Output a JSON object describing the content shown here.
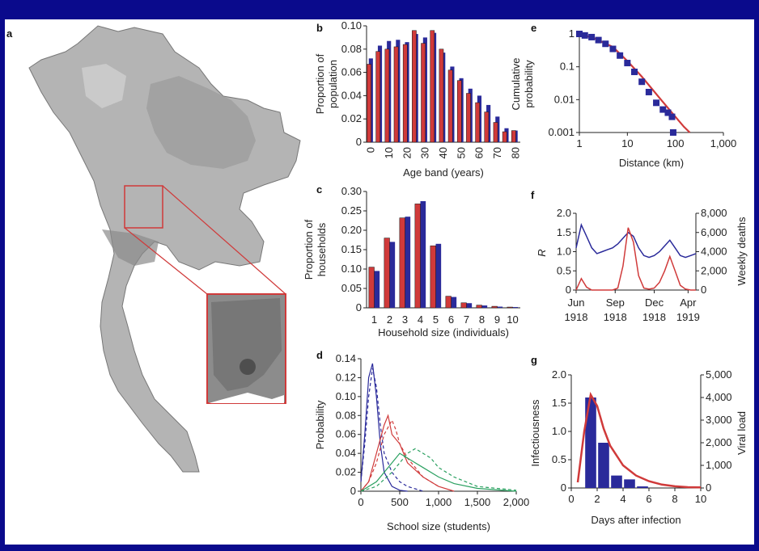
{
  "colors": {
    "background": "#0a0a8c",
    "red": "#d03a3a",
    "blue": "#2a2a9a",
    "green": "#2aa060",
    "map": "#9a9a9a"
  },
  "panels": {
    "a": {
      "letter": "a"
    },
    "b": {
      "letter": "b"
    },
    "c": {
      "letter": "c"
    },
    "d": {
      "letter": "d"
    },
    "e": {
      "letter": "e"
    },
    "f": {
      "letter": "f"
    },
    "g": {
      "letter": "g"
    }
  },
  "chart_data": [
    {
      "id": "b",
      "type": "bar",
      "ylabel": "Proportion of population",
      "xlabel": "Age band (years)",
      "ylim": [
        0,
        0.1
      ],
      "yticks": [
        "0",
        "0.02",
        "0.04",
        "0.06",
        "0.08",
        "0.10"
      ],
      "xticks": [
        "0",
        "10",
        "20",
        "30",
        "40",
        "50",
        "60",
        "70",
        "80"
      ],
      "categories": [
        "0",
        "5",
        "10",
        "15",
        "20",
        "25",
        "30",
        "35",
        "40",
        "45",
        "50",
        "55",
        "60",
        "65",
        "70",
        "75",
        "80"
      ],
      "series": [
        {
          "values": [
            0.072,
            0.083,
            0.087,
            0.088,
            0.086,
            0.093,
            0.09,
            0.094,
            0.077,
            0.065,
            0.055,
            0.046,
            0.04,
            0.032,
            0.022,
            0.012,
            0.01
          ]
        },
        {
          "values": [
            0.067,
            0.078,
            0.08,
            0.082,
            0.084,
            0.096,
            0.085,
            0.096,
            0.08,
            0.062,
            0.053,
            0.042,
            0.034,
            0.026,
            0.017,
            0.009,
            0.01
          ]
        }
      ]
    },
    {
      "id": "c",
      "type": "bar",
      "ylabel": "Proportion of households",
      "xlabel": "Household size (individuals)",
      "ylim": [
        0,
        0.3
      ],
      "yticks": [
        "0",
        "0.05",
        "0.10",
        "0.15",
        "0.20",
        "0.25",
        "0.30"
      ],
      "categories": [
        "1",
        "2",
        "3",
        "4",
        "5",
        "6",
        "7",
        "8",
        "9",
        "10"
      ],
      "series": [
        {
          "values": [
            0.095,
            0.17,
            0.235,
            0.275,
            0.165,
            0.028,
            0.012,
            0.006,
            0.003,
            0.002
          ]
        },
        {
          "values": [
            0.105,
            0.18,
            0.232,
            0.268,
            0.16,
            0.03,
            0.013,
            0.007,
            0.004,
            0.002
          ]
        }
      ]
    },
    {
      "id": "d",
      "type": "line",
      "ylabel": "Probability",
      "xlabel": "School size (students)",
      "xlim": [
        0,
        2000
      ],
      "ylim": [
        0,
        0.14
      ],
      "xticks": [
        "0",
        "500",
        "1,000",
        "1,500",
        "2,000"
      ],
      "yticks": [
        "0",
        "0.02",
        "0.04",
        "0.06",
        "0.08",
        "0.10",
        "0.12",
        "0.14"
      ],
      "series": [
        {
          "style": "blue-solid",
          "x": [
            0,
            50,
            100,
            150,
            200,
            250,
            300,
            400,
            500,
            600
          ],
          "y": [
            0.01,
            0.06,
            0.12,
            0.135,
            0.1,
            0.05,
            0.02,
            0.005,
            0.001,
            0
          ]
        },
        {
          "style": "blue-dashed",
          "x": [
            0,
            50,
            100,
            150,
            200,
            250,
            300,
            400,
            500,
            600,
            800
          ],
          "y": [
            0.01,
            0.05,
            0.1,
            0.13,
            0.11,
            0.07,
            0.04,
            0.02,
            0.01,
            0.005,
            0
          ]
        },
        {
          "style": "red-solid",
          "x": [
            0,
            100,
            200,
            300,
            350,
            400,
            500,
            600,
            800,
            1000,
            1200
          ],
          "y": [
            0,
            0.01,
            0.04,
            0.07,
            0.08,
            0.06,
            0.05,
            0.03,
            0.015,
            0.005,
            0
          ]
        },
        {
          "style": "red-dashed",
          "x": [
            0,
            100,
            200,
            300,
            400,
            450,
            500,
            600,
            800,
            1000
          ],
          "y": [
            0,
            0.01,
            0.03,
            0.06,
            0.075,
            0.065,
            0.05,
            0.035,
            0.015,
            0.005
          ]
        },
        {
          "style": "green-solid",
          "x": [
            0,
            200,
            400,
            500,
            600,
            700,
            800,
            1000,
            1200,
            1500,
            2000
          ],
          "y": [
            0,
            0.01,
            0.03,
            0.04,
            0.035,
            0.03,
            0.025,
            0.015,
            0.008,
            0.003,
            0
          ]
        },
        {
          "style": "green-dashed",
          "x": [
            0,
            200,
            400,
            600,
            700,
            800,
            900,
            1000,
            1200,
            1500,
            2000
          ],
          "y": [
            0,
            0.005,
            0.02,
            0.04,
            0.045,
            0.04,
            0.035,
            0.025,
            0.015,
            0.005,
            0.001
          ]
        }
      ]
    },
    {
      "id": "e",
      "type": "scatter",
      "ylabel": "Cumulative probability",
      "xlabel": "Distance (km)",
      "xlim": [
        1,
        1000
      ],
      "ylim": [
        0.001,
        1
      ],
      "xscale": "log",
      "yscale": "log",
      "xticks": [
        "1",
        "10",
        "100",
        "1,000"
      ],
      "yticks": [
        "0.001",
        "0.01",
        "0.1",
        "1"
      ],
      "points": {
        "x": [
          1,
          1.3,
          1.8,
          2.5,
          3.5,
          5,
          7,
          10,
          14,
          20,
          28,
          40,
          55,
          70,
          85,
          90
        ],
        "y": [
          1,
          0.9,
          0.8,
          0.65,
          0.5,
          0.35,
          0.22,
          0.13,
          0.07,
          0.035,
          0.017,
          0.008,
          0.005,
          0.004,
          0.003,
          0.001
        ]
      },
      "fit": {
        "x": [
          1,
          2,
          5,
          10,
          20,
          50,
          100,
          150,
          200
        ],
        "y": [
          1,
          0.75,
          0.4,
          0.15,
          0.05,
          0.01,
          0.003,
          0.0015,
          0.001
        ]
      }
    },
    {
      "id": "f",
      "type": "line",
      "ylabel": "R",
      "y2label": "Weekly deaths",
      "ylim": [
        0,
        2.0
      ],
      "y2lim": [
        0,
        8000
      ],
      "yticks": [
        "0",
        "0.5",
        "1.0",
        "1.5",
        "2.0"
      ],
      "y2ticks": [
        "0",
        "2,000",
        "4,000",
        "6,000",
        "8,000"
      ],
      "xticks": [
        "Jun",
        "Sep",
        "Dec",
        "Apr"
      ],
      "xticks2": [
        "1918",
        "1918",
        "1918",
        "1919"
      ],
      "series": [
        {
          "name": "",
          "axis": "y",
          "t": [
            0,
            2,
            4,
            6,
            8,
            10,
            12,
            14,
            16,
            18,
            20,
            22,
            24,
            26,
            28,
            30,
            32,
            34,
            36,
            38,
            40,
            42,
            44,
            46
          ],
          "values": [
            1.1,
            1.7,
            1.4,
            1.1,
            0.95,
            1.0,
            1.05,
            1.1,
            1.2,
            1.35,
            1.5,
            1.4,
            1.1,
            0.9,
            0.85,
            0.9,
            1.0,
            1.15,
            1.3,
            1.1,
            0.9,
            0.85,
            0.9,
            0.95
          ]
        },
        {
          "name": "",
          "axis": "y2",
          "t": [
            0,
            2,
            4,
            6,
            8,
            10,
            12,
            14,
            16,
            18,
            20,
            22,
            24,
            26,
            28,
            30,
            32,
            34,
            36,
            38,
            40,
            42,
            44,
            46
          ],
          "values": [
            0,
            1200,
            300,
            0,
            0,
            0,
            0,
            0,
            200,
            2500,
            6500,
            5000,
            1500,
            200,
            100,
            200,
            800,
            2000,
            3500,
            2000,
            500,
            100,
            0,
            0
          ]
        }
      ]
    },
    {
      "id": "g",
      "type": "bar",
      "ylabel": "Infectiousness",
      "y2label": "Viral load",
      "xlabel": "Days after infection",
      "xlim": [
        0,
        10
      ],
      "ylim": [
        0,
        2.0
      ],
      "y2lim": [
        0,
        5000
      ],
      "xticks": [
        "0",
        "2",
        "4",
        "6",
        "8",
        "10"
      ],
      "yticks": [
        "0",
        "0.5",
        "1.0",
        "1.5",
        "2.0"
      ],
      "y2ticks": [
        "0",
        "1,000",
        "2,000",
        "3,000",
        "4,000",
        "5,000"
      ],
      "bars": {
        "x": [
          1.5,
          2.5,
          3.5,
          4.5,
          5.5
        ],
        "values": [
          4000,
          2000,
          550,
          380,
          70
        ]
      },
      "curve": {
        "x": [
          0.5,
          1,
          1.5,
          2,
          2.5,
          3,
          4,
          5,
          6,
          7,
          8,
          9,
          10
        ],
        "y": [
          0.1,
          1.0,
          1.65,
          1.45,
          1.05,
          0.75,
          0.4,
          0.22,
          0.12,
          0.06,
          0.03,
          0.015,
          0.01
        ]
      }
    }
  ]
}
